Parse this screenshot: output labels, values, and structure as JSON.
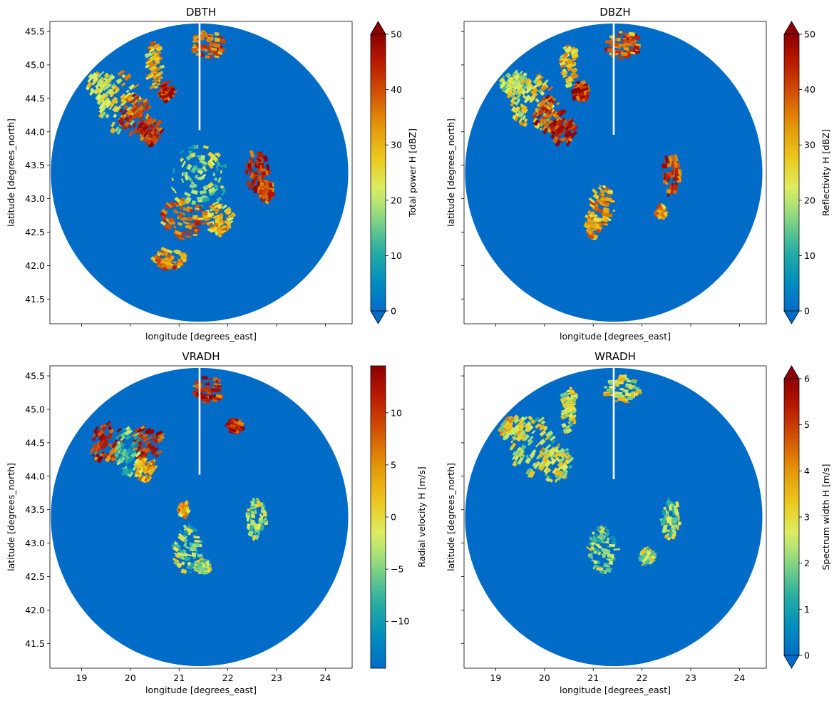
{
  "chart_data": [
    {
      "type": "heatmap",
      "title": "DBTH",
      "xlabel": "longitude [degrees_east]",
      "ylabel": "latitude [degrees_north]",
      "xlim": [
        18.35,
        24.55
      ],
      "ylim": [
        41.13,
        45.65
      ],
      "xticks": [
        19,
        20,
        21,
        22,
        23,
        24
      ],
      "xtick_labels_visible": false,
      "yticks": [
        41.5,
        42.0,
        42.5,
        43.0,
        43.5,
        44.0,
        44.5,
        45.0,
        45.5
      ],
      "ytick_labels": [
        "41.5",
        "42.0",
        "42.5",
        "43.0",
        "43.5",
        "44.0",
        "44.5",
        "45.0",
        "45.5"
      ],
      "colorbar": {
        "label": "Total power H [dBZ]",
        "min": 0,
        "max": 50,
        "ticks": [
          0,
          10,
          20,
          30,
          40,
          50
        ],
        "extend": "both"
      },
      "background_value": 0,
      "radar_center": [
        21.42,
        43.39
      ],
      "radar_radius_lon": 3.05,
      "radar_radius_lat": 2.23,
      "blobs": [
        {
          "lon": 19.75,
          "lat": 44.45,
          "rx": 0.45,
          "ry": 0.45,
          "value": 26
        },
        {
          "lon": 20.1,
          "lat": 44.25,
          "rx": 0.3,
          "ry": 0.3,
          "value": 40
        },
        {
          "lon": 20.4,
          "lat": 44.0,
          "rx": 0.25,
          "ry": 0.2,
          "value": 44
        },
        {
          "lon": 20.75,
          "lat": 44.6,
          "rx": 0.15,
          "ry": 0.15,
          "value": 44
        },
        {
          "lon": 19.4,
          "lat": 44.7,
          "rx": 0.3,
          "ry": 0.2,
          "value": 22
        },
        {
          "lon": 21.6,
          "lat": 45.3,
          "rx": 0.35,
          "ry": 0.2,
          "value": 38
        },
        {
          "lon": 20.5,
          "lat": 45.0,
          "rx": 0.15,
          "ry": 0.35,
          "value": 30
        },
        {
          "lon": 22.6,
          "lat": 43.4,
          "rx": 0.25,
          "ry": 0.3,
          "value": 44
        },
        {
          "lon": 21.4,
          "lat": 43.3,
          "rx": 0.6,
          "ry": 0.5,
          "value": 18
        },
        {
          "lon": 21.1,
          "lat": 42.7,
          "rx": 0.45,
          "ry": 0.3,
          "value": 36
        },
        {
          "lon": 21.8,
          "lat": 42.7,
          "rx": 0.3,
          "ry": 0.25,
          "value": 30
        },
        {
          "lon": 20.8,
          "lat": 42.1,
          "rx": 0.35,
          "ry": 0.15,
          "value": 34
        },
        {
          "lon": 22.8,
          "lat": 43.1,
          "rx": 0.15,
          "ry": 0.15,
          "value": 40
        }
      ]
    },
    {
      "type": "heatmap",
      "title": "DBZH",
      "xlabel": "longitude [degrees_east]",
      "ylabel": "latitude [degrees_north]",
      "xlim": [
        18.35,
        24.55
      ],
      "ylim": [
        41.13,
        45.65
      ],
      "xticks": [
        19,
        20,
        21,
        22,
        23,
        24
      ],
      "xtick_labels_visible": false,
      "yticks": [
        41.5,
        42.0,
        42.5,
        43.0,
        43.5,
        44.0,
        44.5,
        45.0,
        45.5
      ],
      "ytick_labels_visible": false,
      "colorbar": {
        "label": "Reflectivity H [dBZ]",
        "min": 0,
        "max": 50,
        "ticks": [
          0,
          10,
          20,
          30,
          40,
          50
        ],
        "extend": "both"
      },
      "background_value": 0,
      "radar_center": [
        21.42,
        43.39
      ],
      "radar_radius_lon": 3.05,
      "radar_radius_lat": 2.23,
      "blobs": [
        {
          "lon": 19.75,
          "lat": 44.45,
          "rx": 0.45,
          "ry": 0.45,
          "value": 26
        },
        {
          "lon": 20.1,
          "lat": 44.25,
          "rx": 0.3,
          "ry": 0.3,
          "value": 40
        },
        {
          "lon": 20.4,
          "lat": 44.0,
          "rx": 0.25,
          "ry": 0.2,
          "value": 44
        },
        {
          "lon": 20.75,
          "lat": 44.6,
          "rx": 0.15,
          "ry": 0.15,
          "value": 44
        },
        {
          "lon": 19.4,
          "lat": 44.7,
          "rx": 0.3,
          "ry": 0.2,
          "value": 22
        },
        {
          "lon": 21.6,
          "lat": 45.3,
          "rx": 0.35,
          "ry": 0.2,
          "value": 38
        },
        {
          "lon": 20.5,
          "lat": 45.0,
          "rx": 0.15,
          "ry": 0.35,
          "value": 30
        },
        {
          "lon": 22.6,
          "lat": 43.35,
          "rx": 0.2,
          "ry": 0.3,
          "value": 42
        },
        {
          "lon": 21.2,
          "lat": 42.9,
          "rx": 0.25,
          "ry": 0.3,
          "value": 34
        },
        {
          "lon": 21.0,
          "lat": 42.6,
          "rx": 0.15,
          "ry": 0.2,
          "value": 30
        },
        {
          "lon": 22.4,
          "lat": 42.8,
          "rx": 0.1,
          "ry": 0.1,
          "value": 34
        }
      ]
    },
    {
      "type": "heatmap",
      "title": "VRADH",
      "xlabel": "longitude [degrees_east]",
      "ylabel": "latitude [degrees_north]",
      "xlim": [
        18.35,
        24.55
      ],
      "ylim": [
        41.13,
        45.65
      ],
      "xticks": [
        19,
        20,
        21,
        22,
        23,
        24
      ],
      "xtick_labels": [
        "19",
        "20",
        "21",
        "22",
        "23",
        "24"
      ],
      "yticks": [
        41.5,
        42.0,
        42.5,
        43.0,
        43.5,
        44.0,
        44.5,
        45.0,
        45.5
      ],
      "ytick_labels": [
        "41.5",
        "42.0",
        "42.5",
        "43.0",
        "43.5",
        "44.0",
        "44.5",
        "45.0",
        "45.5"
      ],
      "colorbar": {
        "label": "Radial velocity H [m/s]",
        "min": -14.5,
        "max": 14.5,
        "ticks": [
          -10,
          -5,
          0,
          5,
          10
        ],
        "tick_labels": [
          "−10",
          "−5",
          "0",
          "5",
          "10"
        ],
        "extend": "neither"
      },
      "background_value": -14.5,
      "radar_center": [
        21.42,
        43.39
      ],
      "radar_radius_lon": 3.05,
      "radar_radius_lat": 2.23,
      "blobs": [
        {
          "lon": 19.5,
          "lat": 44.5,
          "rx": 0.35,
          "ry": 0.3,
          "value": 10
        },
        {
          "lon": 20.35,
          "lat": 44.5,
          "rx": 0.35,
          "ry": 0.25,
          "value": 11
        },
        {
          "lon": 19.95,
          "lat": 44.35,
          "rx": 0.25,
          "ry": 0.4,
          "value": -8
        },
        {
          "lon": 20.3,
          "lat": 44.1,
          "rx": 0.2,
          "ry": 0.2,
          "value": 3
        },
        {
          "lon": 21.6,
          "lat": 45.3,
          "rx": 0.3,
          "ry": 0.2,
          "value": 11
        },
        {
          "lon": 22.15,
          "lat": 44.75,
          "rx": 0.15,
          "ry": 0.1,
          "value": 12
        },
        {
          "lon": 22.6,
          "lat": 43.35,
          "rx": 0.2,
          "ry": 0.3,
          "value": -4
        },
        {
          "lon": 21.2,
          "lat": 42.9,
          "rx": 0.3,
          "ry": 0.35,
          "value": -5
        },
        {
          "lon": 21.1,
          "lat": 43.5,
          "rx": 0.1,
          "ry": 0.1,
          "value": 4
        },
        {
          "lon": 21.5,
          "lat": 42.65,
          "rx": 0.15,
          "ry": 0.1,
          "value": -3
        }
      ]
    },
    {
      "type": "heatmap",
      "title": "WRADH",
      "xlabel": "longitude [degrees_east]",
      "ylabel": "latitude [degrees_north]",
      "xlim": [
        18.35,
        24.55
      ],
      "ylim": [
        41.13,
        45.65
      ],
      "xticks": [
        19,
        20,
        21,
        22,
        23,
        24
      ],
      "xtick_labels": [
        "19",
        "20",
        "21",
        "22",
        "23",
        "24"
      ],
      "yticks": [
        41.5,
        42.0,
        42.5,
        43.0,
        43.5,
        44.0,
        44.5,
        45.0,
        45.5
      ],
      "ytick_labels_visible": false,
      "colorbar": {
        "label": "Spectrum width H [m/s]",
        "min": 0,
        "max": 6,
        "ticks": [
          0,
          1,
          2,
          3,
          4,
          5,
          6
        ],
        "extend": "both"
      },
      "background_value": 0,
      "radar_center": [
        21.42,
        43.39
      ],
      "radar_radius_lon": 3.05,
      "radar_radius_lat": 2.23,
      "blobs": [
        {
          "lon": 19.75,
          "lat": 44.45,
          "rx": 0.45,
          "ry": 0.45,
          "value": 2.4
        },
        {
          "lon": 20.2,
          "lat": 44.2,
          "rx": 0.35,
          "ry": 0.3,
          "value": 2.8
        },
        {
          "lon": 19.4,
          "lat": 44.7,
          "rx": 0.3,
          "ry": 0.2,
          "value": 3.0
        },
        {
          "lon": 21.6,
          "lat": 45.3,
          "rx": 0.35,
          "ry": 0.2,
          "value": 2.6
        },
        {
          "lon": 20.5,
          "lat": 45.0,
          "rx": 0.15,
          "ry": 0.35,
          "value": 2.5
        },
        {
          "lon": 22.6,
          "lat": 43.35,
          "rx": 0.2,
          "ry": 0.3,
          "value": 2.2
        },
        {
          "lon": 21.2,
          "lat": 42.9,
          "rx": 0.3,
          "ry": 0.35,
          "value": 2.0
        },
        {
          "lon": 22.1,
          "lat": 42.8,
          "rx": 0.15,
          "ry": 0.12,
          "value": 2.3
        }
      ]
    }
  ]
}
